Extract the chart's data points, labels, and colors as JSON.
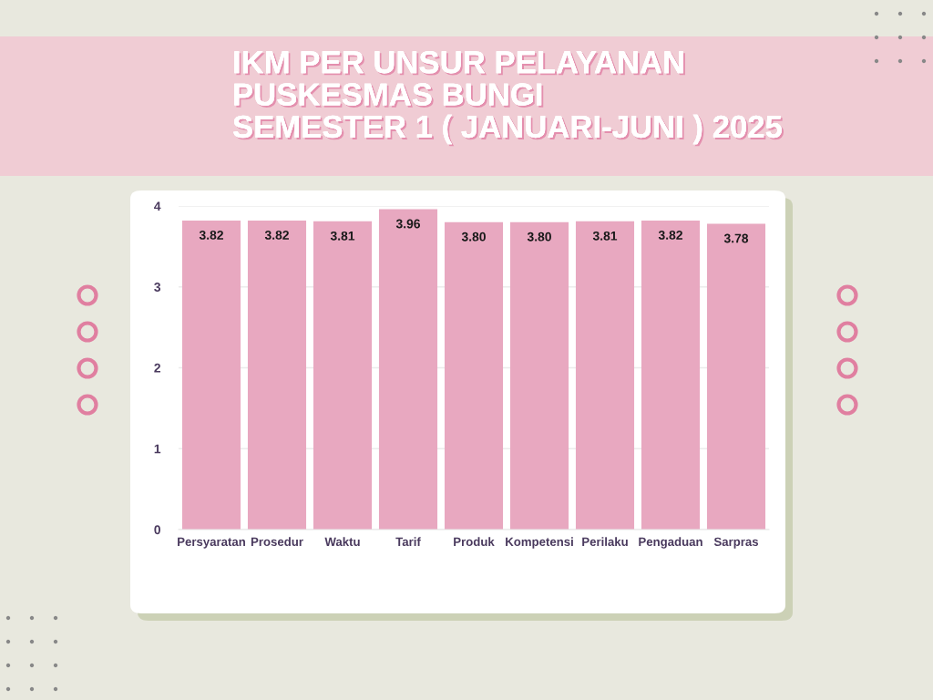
{
  "chart_data": {
    "type": "bar",
    "title": "IKM PER UNSUR PELAYANAN\nPUSKESMAS BUNGI\nSEMESTER 1 ( JANUARI-JUNI ) 2025",
    "categories": [
      "Persyaratan",
      "Prosedur",
      "Waktu",
      "Tarif",
      "Produk",
      "Kompetensi",
      "Perilaku",
      "Pengaduan",
      "Sarpras"
    ],
    "values": [
      3.82,
      3.82,
      3.81,
      3.96,
      3.8,
      3.8,
      3.81,
      3.82,
      3.78
    ],
    "value_labels": [
      "3.82",
      "3.82",
      "3.81",
      "3.96",
      "3.80",
      "3.80",
      "3.81",
      "3.82",
      "3.78"
    ],
    "color": "#e8a8c0",
    "ylim": [
      0,
      4
    ],
    "yticks": [
      0,
      1,
      2,
      3,
      4
    ],
    "grid": "y"
  }
}
